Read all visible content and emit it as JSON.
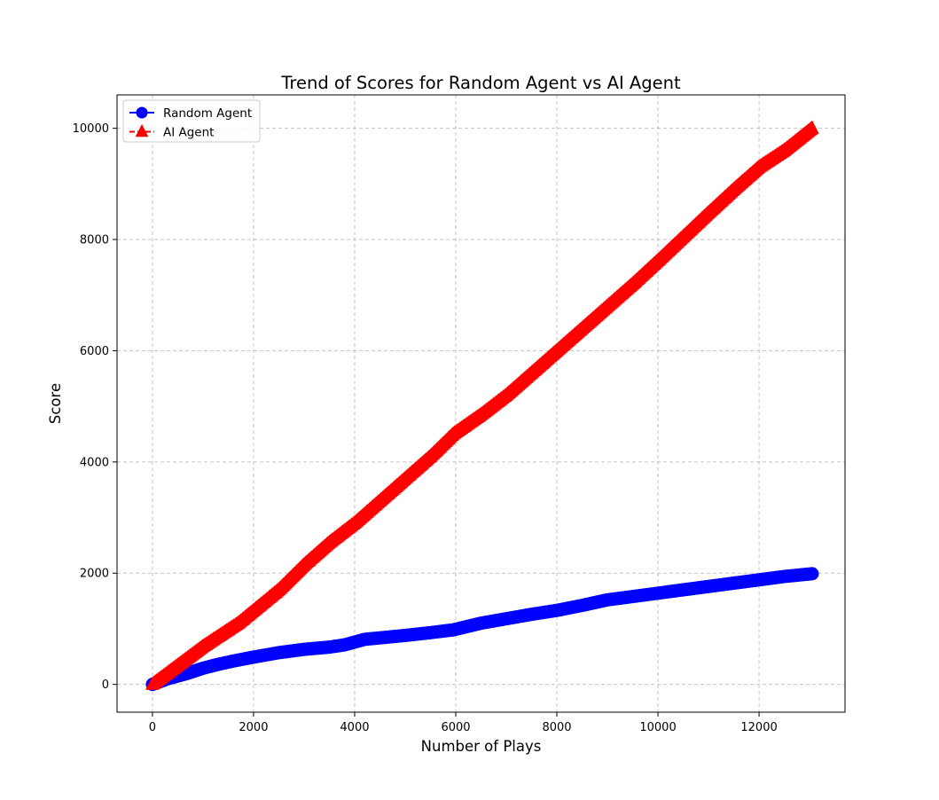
{
  "chart_data": {
    "type": "line",
    "title": "Trend of Scores for Random Agent vs AI Agent",
    "xlabel": "Number of Plays",
    "ylabel": "Score",
    "xlim": [
      -700,
      13700
    ],
    "ylim": [
      -500,
      10600
    ],
    "xticks": [
      0,
      2000,
      4000,
      6000,
      8000,
      10000,
      12000
    ],
    "yticks": [
      0,
      2000,
      4000,
      6000,
      8000,
      10000
    ],
    "grid": true,
    "grid_style": "dashed",
    "legend_position": "upper-left",
    "series": [
      {
        "name": "Random Agent",
        "color": "#0000ff",
        "marker": "circle",
        "line_style": "solid",
        "x": [
          0,
          300,
          700,
          1000,
          1300,
          1600,
          2000,
          2500,
          3000,
          3500,
          3800,
          4000,
          4200,
          5000,
          5500,
          5950,
          6500,
          7000,
          7500,
          8000,
          8500,
          9000,
          9500,
          10000,
          10500,
          11000,
          11500,
          12000,
          12500,
          13050
        ],
        "y": [
          0,
          100,
          200,
          290,
          360,
          420,
          490,
          570,
          630,
          670,
          710,
          760,
          810,
          880,
          930,
          980,
          1100,
          1180,
          1260,
          1330,
          1420,
          1520,
          1580,
          1640,
          1700,
          1760,
          1820,
          1880,
          1940,
          1990
        ]
      },
      {
        "name": "AI Agent",
        "color": "#ff0000",
        "marker": "triangle",
        "line_style": "dashed",
        "x": [
          0,
          500,
          1000,
          1700,
          2500,
          3000,
          3500,
          4000,
          4500,
          5000,
          5500,
          5950,
          6500,
          7000,
          7500,
          8000,
          8500,
          9000,
          9500,
          10000,
          10500,
          11000,
          11500,
          12000,
          12500,
          13050
        ],
        "y": [
          0,
          340,
          680,
          1100,
          1700,
          2150,
          2550,
          2900,
          3300,
          3700,
          4100,
          4500,
          4850,
          5200,
          5600,
          6000,
          6400,
          6800,
          7200,
          7620,
          8050,
          8480,
          8900,
          9300,
          9600,
          10000
        ]
      }
    ]
  }
}
